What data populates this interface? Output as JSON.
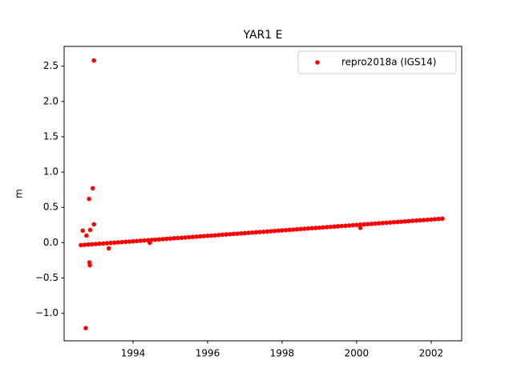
{
  "chart_data": {
    "type": "scatter",
    "title": "YAR1 E",
    "ylabel": "m",
    "xlim": [
      1992.15,
      2002.82
    ],
    "ylim": [
      -1.39,
      2.78
    ],
    "xticks": [
      1994,
      1996,
      1998,
      2000,
      2002
    ],
    "yticks": [
      {
        "value": -1.0,
        "label": "−1.0"
      },
      {
        "value": -0.5,
        "label": "−0.5"
      },
      {
        "value": 0.0,
        "label": "0.0"
      },
      {
        "value": 0.5,
        "label": "0.5"
      },
      {
        "value": 1.0,
        "label": "1.0"
      },
      {
        "value": 1.5,
        "label": "1.5"
      },
      {
        "value": 2.0,
        "label": "2.0"
      },
      {
        "value": 2.5,
        "label": "2.5"
      }
    ],
    "legend": "upper right",
    "grid": false,
    "series": [
      {
        "name": "repro2018a (IGS14)",
        "color": "#ff0000",
        "x": [
          1992.6,
          1992.7,
          1992.8,
          1992.9,
          1993.0,
          1993.1,
          1993.2,
          1993.3,
          1993.4,
          1993.5,
          1993.6,
          1993.7,
          1993.8,
          1993.9,
          1994.0,
          1994.1,
          1994.2,
          1994.3,
          1994.4,
          1994.5,
          1994.6,
          1994.7,
          1994.8,
          1994.9,
          1995.0,
          1995.1,
          1995.2,
          1995.3,
          1995.4,
          1995.5,
          1995.6,
          1995.7,
          1995.8,
          1995.9,
          1996.0,
          1996.1,
          1996.2,
          1996.3,
          1996.4,
          1996.5,
          1996.6,
          1996.7,
          1996.8,
          1996.9,
          1997.0,
          1997.1,
          1997.2,
          1997.3,
          1997.4,
          1997.5,
          1997.6,
          1997.7,
          1997.8,
          1997.9,
          1998.0,
          1998.1,
          1998.2,
          1998.3,
          1998.4,
          1998.5,
          1998.6,
          1998.7,
          1998.8,
          1998.9,
          1999.0,
          1999.1,
          1999.2,
          1999.3,
          1999.4,
          1999.5,
          1999.6,
          1999.7,
          1999.8,
          1999.9,
          2000.0,
          2000.1,
          2000.2,
          2000.3,
          2000.4,
          2000.5,
          2000.6,
          2000.7,
          2000.8,
          2000.9,
          2001.0,
          2001.1,
          2001.2,
          2001.3,
          2001.4,
          2001.5,
          2001.6,
          2001.7,
          2001.8,
          2001.9,
          2002.0,
          2002.1,
          2002.2,
          2002.3,
          1992.95,
          1992.92,
          1992.82,
          1992.95,
          1992.85,
          1992.65,
          1992.75,
          1992.83,
          1992.84,
          1992.73,
          1993.35,
          2000.1,
          1994.45
        ],
        "values": [
          -0.035,
          -0.031,
          -0.027,
          -0.023,
          -0.019,
          -0.015,
          -0.012,
          -0.008,
          -0.004,
          0.0,
          0.004,
          0.008,
          0.012,
          0.015,
          0.019,
          0.023,
          0.027,
          0.031,
          0.035,
          0.039,
          0.042,
          0.046,
          0.05,
          0.054,
          0.058,
          0.062,
          0.066,
          0.069,
          0.073,
          0.077,
          0.081,
          0.085,
          0.089,
          0.093,
          0.097,
          0.1,
          0.104,
          0.108,
          0.112,
          0.116,
          0.12,
          0.124,
          0.127,
          0.131,
          0.135,
          0.139,
          0.143,
          0.147,
          0.151,
          0.154,
          0.158,
          0.162,
          0.166,
          0.17,
          0.174,
          0.178,
          0.181,
          0.185,
          0.189,
          0.193,
          0.197,
          0.201,
          0.205,
          0.208,
          0.212,
          0.216,
          0.22,
          0.224,
          0.228,
          0.232,
          0.236,
          0.239,
          0.243,
          0.247,
          0.251,
          0.255,
          0.259,
          0.263,
          0.266,
          0.27,
          0.274,
          0.278,
          0.282,
          0.286,
          0.29,
          0.293,
          0.297,
          0.301,
          0.305,
          0.309,
          0.313,
          0.317,
          0.32,
          0.324,
          0.328,
          0.332,
          0.336,
          0.34,
          2.58,
          0.77,
          0.62,
          0.26,
          0.18,
          0.17,
          0.1,
          -0.28,
          -0.32,
          -1.21,
          -0.08,
          0.21,
          0.0
        ]
      }
    ]
  }
}
